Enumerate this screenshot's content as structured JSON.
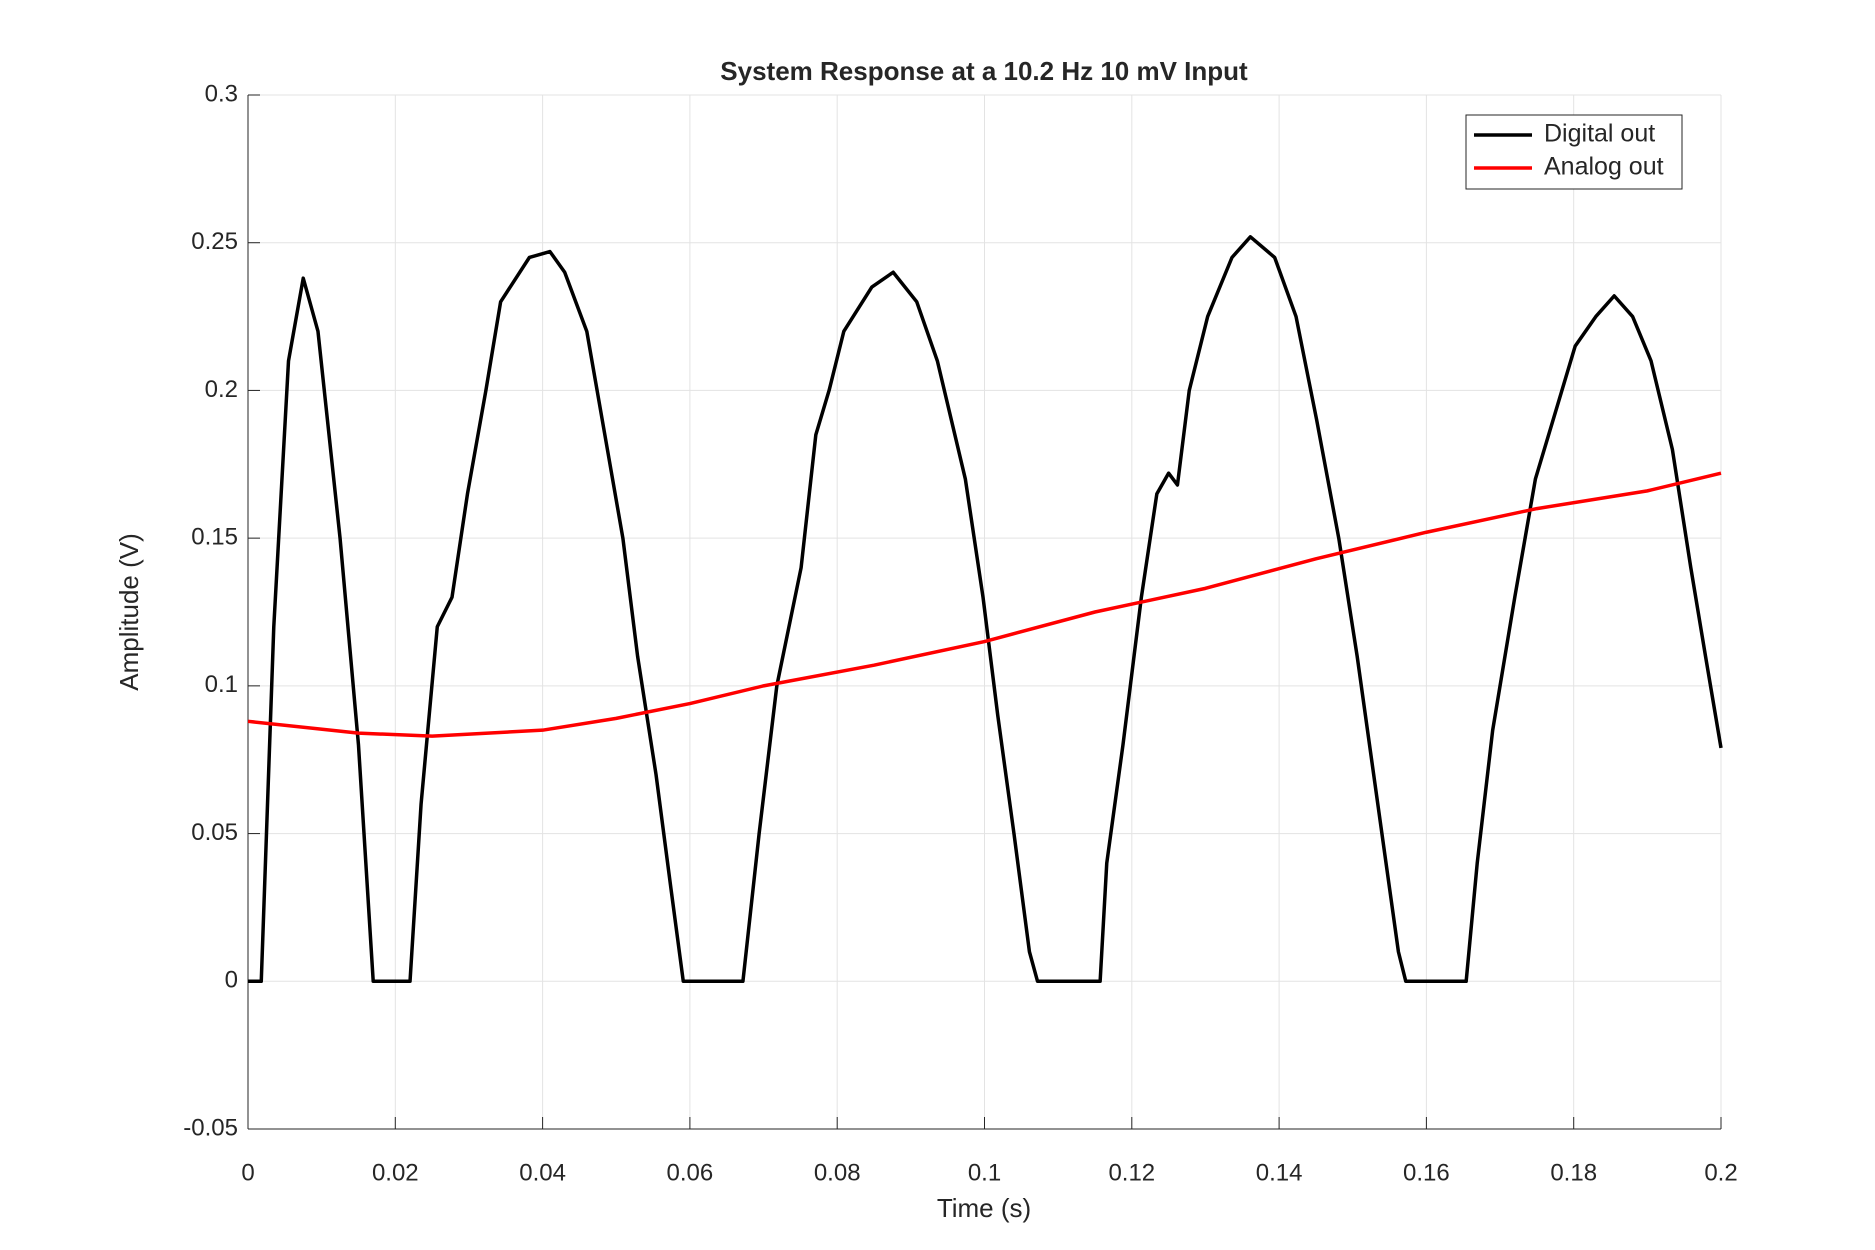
{
  "chart_data": {
    "type": "line",
    "title": "System Response at a 10.2 Hz 10 mV Input",
    "xlabel": "Time (s)",
    "ylabel": "Amplitude (V)",
    "xlim": [
      0,
      0.2
    ],
    "ylim": [
      -0.05,
      0.3
    ],
    "xticks": [
      0,
      0.02,
      0.04,
      0.06,
      0.08,
      0.1,
      0.12,
      0.14,
      0.16,
      0.18,
      0.2
    ],
    "yticks": [
      -0.05,
      0,
      0.05,
      0.1,
      0.15,
      0.2,
      0.25,
      0.3
    ],
    "grid": true,
    "legend": "upper right",
    "series": [
      {
        "name": "Digital out",
        "color": "#000000",
        "x": [
          0,
          0.0018,
          0.0035,
          0.0055,
          0.0075,
          0.0095,
          0.0125,
          0.015,
          0.017,
          0.022,
          0.0235,
          0.0257,
          0.0277,
          0.0298,
          0.0323,
          0.0343,
          0.0382,
          0.041,
          0.043,
          0.046,
          0.0488,
          0.0509,
          0.0529,
          0.0554,
          0.0575,
          0.0591,
          0.0672,
          0.0694,
          0.0718,
          0.0751,
          0.0771,
          0.0789,
          0.0809,
          0.0847,
          0.0876,
          0.0908,
          0.0936,
          0.0974,
          0.0998,
          0.1018,
          0.104,
          0.1061,
          0.1072,
          0.1157,
          0.1166,
          0.1188,
          0.1213,
          0.1234,
          0.125,
          0.1262,
          0.1278,
          0.1303,
          0.1336,
          0.1361,
          0.1394,
          0.1423,
          0.1451,
          0.1481,
          0.1506,
          0.1534,
          0.1562,
          0.1572,
          0.1654,
          0.1669,
          0.169,
          0.172,
          0.1748,
          0.1778,
          0.1802,
          0.183,
          0.1855,
          0.188,
          0.1905,
          0.1934,
          0.1959,
          0.1979,
          0.2
        ],
        "values": [
          0,
          0,
          0.12,
          0.21,
          0.238,
          0.22,
          0.15,
          0.08,
          0,
          0,
          0.06,
          0.12,
          0.13,
          0.165,
          0.2,
          0.23,
          0.245,
          0.247,
          0.24,
          0.22,
          0.18,
          0.15,
          0.11,
          0.07,
          0.03,
          0,
          0,
          0.05,
          0.1,
          0.14,
          0.185,
          0.2,
          0.22,
          0.235,
          0.24,
          0.23,
          0.21,
          0.17,
          0.13,
          0.09,
          0.05,
          0.01,
          0,
          0,
          0.04,
          0.08,
          0.13,
          0.165,
          0.172,
          0.168,
          0.2,
          0.225,
          0.245,
          0.252,
          0.245,
          0.225,
          0.19,
          0.15,
          0.11,
          0.06,
          0.01,
          0,
          0,
          0.04,
          0.085,
          0.13,
          0.17,
          0.195,
          0.215,
          0.225,
          0.232,
          0.225,
          0.21,
          0.18,
          0.14,
          0.11,
          0.079
        ]
      },
      {
        "name": "Analog out",
        "color": "#ff0000",
        "x": [
          0,
          0.015,
          0.025,
          0.04,
          0.05,
          0.06,
          0.07,
          0.085,
          0.1,
          0.115,
          0.13,
          0.145,
          0.16,
          0.175,
          0.19,
          0.2
        ],
        "values": [
          0.088,
          0.084,
          0.083,
          0.085,
          0.089,
          0.094,
          0.1,
          0.107,
          0.115,
          0.125,
          0.133,
          0.143,
          0.152,
          0.16,
          0.166,
          0.172
        ]
      }
    ]
  }
}
